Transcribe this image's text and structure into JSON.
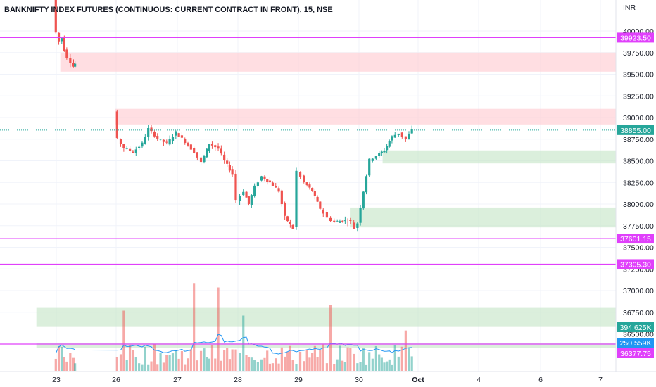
{
  "chart_data": {
    "type": "candlestick",
    "title": "BANKNIFTY INDEX FUTURES (CONTINUOUS: CURRENT CONTRACT IN FRONT), 15, NSE",
    "currency": "INR",
    "y_ticks": [
      40000,
      39750,
      39500,
      39250,
      39000,
      38750,
      38500,
      38250,
      38000,
      37750,
      37500,
      37250,
      37000,
      36750,
      36500
    ],
    "y_tick_labels": [
      "40000.00",
      "39750.00",
      "39500.00",
      "39250.00",
      "39000.00",
      "38750.00",
      "38500.00",
      "38250.00",
      "38000.00",
      "37750.00",
      "37500.00",
      "37250.00",
      "37000.00",
      "36750.00",
      "36500.00"
    ],
    "ylim": [
      36220,
      40350
    ],
    "x_ticks": [
      {
        "label": "23",
        "day": 23
      },
      {
        "label": "26",
        "day": 26
      },
      {
        "label": "27",
        "day": 27
      },
      {
        "label": "28",
        "day": 28
      },
      {
        "label": "29",
        "day": 29
      },
      {
        "label": "30",
        "day": 30
      },
      {
        "label": "Oct",
        "day": 31
      },
      {
        "label": "4",
        "day": 32
      },
      {
        "label": "6",
        "day": 33
      },
      {
        "label": "7",
        "day": 34
      }
    ],
    "horizontal_levels": [
      {
        "value": 39923.5,
        "label": "39923.50",
        "color": "#e040fb"
      },
      {
        "value": 37601.15,
        "label": "37601.15",
        "color": "#e040fb"
      },
      {
        "value": 37305.3,
        "label": "37305.30",
        "color": "#e040fb"
      }
    ],
    "last_price": {
      "value": 38855,
      "label": "38855.00",
      "color": "#26a69a"
    },
    "volume_tags": [
      {
        "label": "394.625K",
        "color": "#26a69a"
      },
      {
        "label": "250.559K",
        "color": "#2196f3"
      }
    ],
    "bottom_tag": {
      "value": 36377.75,
      "label": "36377.75",
      "color": "#e040fb"
    },
    "zones": [
      {
        "type": "supply",
        "x_from": 23.2,
        "x_to": 35,
        "y_from": 39530,
        "y_to": 39750,
        "color": "#ffcdd2"
      },
      {
        "type": "supply",
        "x_from": 25.94,
        "x_to": 35,
        "y_from": 38920,
        "y_to": 39100,
        "color": "#ffcdd2"
      },
      {
        "type": "demand",
        "x_from": 30.4,
        "x_to": 35,
        "y_from": 38470,
        "y_to": 38620,
        "color": "#c8e6c9"
      },
      {
        "type": "demand",
        "x_from": 29.85,
        "x_to": 35,
        "y_from": 37730,
        "y_to": 37960,
        "color": "#c8e6c9"
      },
      {
        "type": "demand",
        "x_from": 22.0,
        "x_to": 35,
        "y_from": 36580,
        "y_to": 36800,
        "color": "#c8e6c9"
      },
      {
        "type": "demand",
        "x_from": 22.0,
        "x_to": 35,
        "y_from": 36340,
        "y_to": 36390,
        "color": "#c8e6c9"
      }
    ],
    "price_path": [
      [
        22.9,
        40400
      ],
      [
        23.05,
        39980
      ],
      [
        23.2,
        39880
      ],
      [
        23.35,
        39920
      ],
      [
        23.45,
        39780
      ],
      [
        23.6,
        39700
      ],
      [
        23.8,
        39640
      ],
      [
        23.93,
        39590
      ],
      [
        23.95,
        39620
      ],
      [
        25.94,
        39080
      ],
      [
        26.05,
        38750
      ],
      [
        26.15,
        38650
      ],
      [
        26.3,
        38600
      ],
      [
        26.45,
        38700
      ],
      [
        26.55,
        38870
      ],
      [
        26.7,
        38760
      ],
      [
        26.85,
        38700
      ],
      [
        27.0,
        38830
      ],
      [
        27.15,
        38720
      ],
      [
        27.3,
        38600
      ],
      [
        27.42,
        38480
      ],
      [
        27.55,
        38700
      ],
      [
        27.7,
        38640
      ],
      [
        27.8,
        38500
      ],
      [
        27.93,
        38350
      ],
      [
        28.0,
        38050
      ],
      [
        28.12,
        38150
      ],
      [
        28.2,
        38000
      ],
      [
        28.3,
        38200
      ],
      [
        28.42,
        38320
      ],
      [
        28.55,
        38250
      ],
      [
        28.7,
        38150
      ],
      [
        28.8,
        37850
      ],
      [
        28.93,
        37720
      ],
      [
        29.0,
        38380
      ],
      [
        29.12,
        38250
      ],
      [
        29.25,
        38150
      ],
      [
        29.38,
        37950
      ],
      [
        29.5,
        37840
      ],
      [
        29.62,
        37790
      ],
      [
        29.75,
        37810
      ],
      [
        29.88,
        37800
      ],
      [
        29.95,
        37720
      ],
      [
        30.0,
        37780
      ],
      [
        30.1,
        38150
      ],
      [
        30.2,
        38510
      ],
      [
        30.32,
        38560
      ],
      [
        30.45,
        38620
      ],
      [
        30.58,
        38780
      ],
      [
        30.7,
        38820
      ],
      [
        30.82,
        38750
      ],
      [
        30.92,
        38855
      ]
    ]
  }
}
